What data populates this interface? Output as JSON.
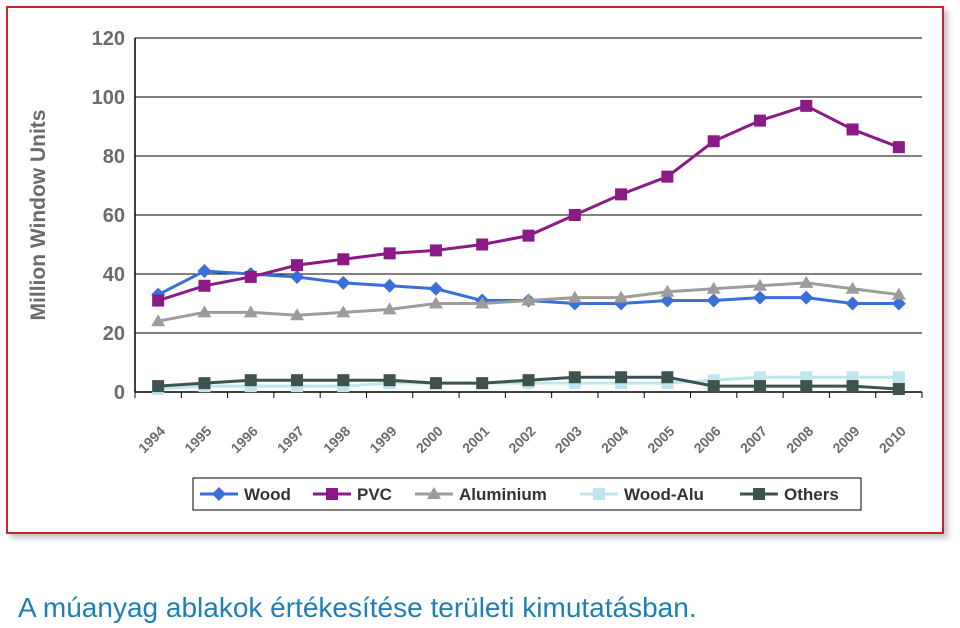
{
  "caption": "A múanyag ablakok értékesítése területi kimutatásban.",
  "chart_data": {
    "type": "line",
    "ylabel": "Million Window Units",
    "xlabel": "",
    "ylim": [
      0,
      120
    ],
    "yticks": [
      0,
      20,
      40,
      60,
      80,
      100,
      120
    ],
    "grid": true,
    "legend_position": "bottom",
    "categories": [
      "1994",
      "1995",
      "1996",
      "1997",
      "1998",
      "1999",
      "2000",
      "2001",
      "2002",
      "2003",
      "2004",
      "2005",
      "2006",
      "2007",
      "2008",
      "2009",
      "2010"
    ],
    "series": [
      {
        "name": "Wood",
        "color": "#3a6fd8",
        "marker": "diamond",
        "values": [
          33,
          41,
          40,
          39,
          37,
          36,
          35,
          31,
          31,
          30,
          30,
          31,
          31,
          32,
          32,
          30,
          30
        ]
      },
      {
        "name": "PVC",
        "color": "#8b1a86",
        "marker": "square",
        "values": [
          31,
          36,
          39,
          43,
          45,
          47,
          48,
          50,
          53,
          60,
          67,
          73,
          85,
          92,
          97,
          89,
          83
        ]
      },
      {
        "name": "Aluminium",
        "color": "#9c9c9c",
        "marker": "triangle",
        "values": [
          24,
          27,
          27,
          26,
          27,
          28,
          30,
          30,
          31,
          32,
          32,
          34,
          35,
          36,
          37,
          35,
          33
        ]
      },
      {
        "name": "Wood-Alu",
        "color": "#bfe6ee",
        "marker": "square",
        "values": [
          1,
          2,
          2,
          2,
          2,
          3,
          3,
          3,
          3,
          3,
          3,
          3,
          4,
          5,
          5,
          5,
          5
        ]
      },
      {
        "name": "Others",
        "color": "#3e534d",
        "marker": "square",
        "values": [
          2,
          3,
          4,
          4,
          4,
          4,
          3,
          3,
          4,
          5,
          5,
          5,
          2,
          2,
          2,
          2,
          1
        ]
      }
    ]
  }
}
